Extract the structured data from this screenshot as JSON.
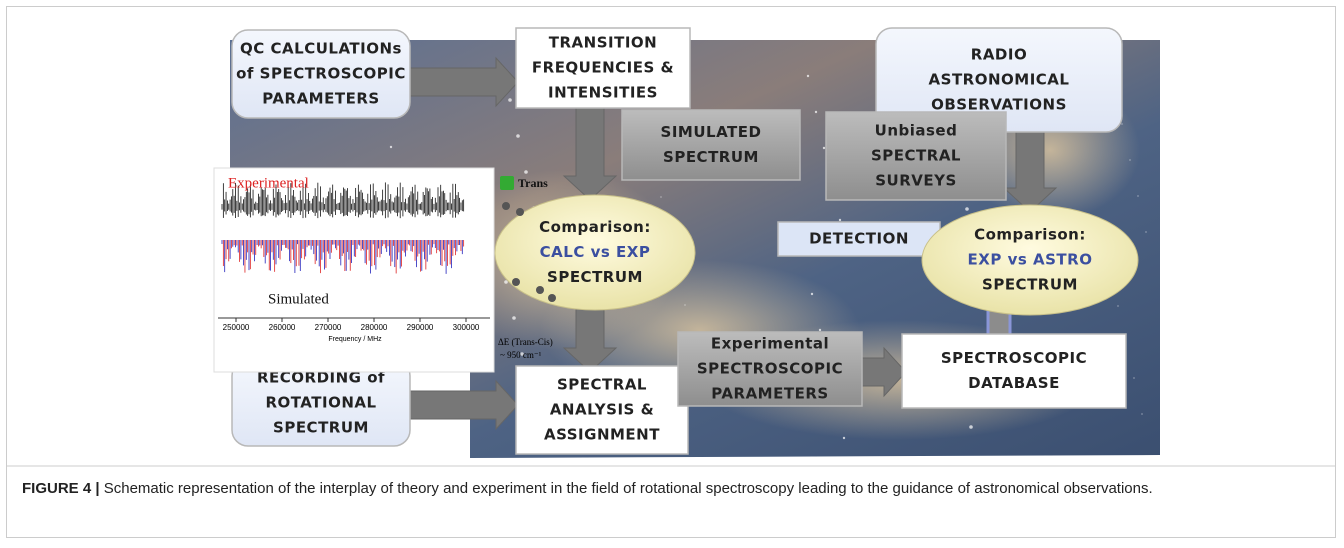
{
  "nodes": [
    {
      "lines": [
        "QC CALCULATIONs",
        "of SPECTROSCOPIC",
        "PARAMETERS"
      ]
    },
    {
      "lines": [
        "TRANSITION",
        "FREQUENCIES &",
        "INTENSITIES"
      ]
    },
    {
      "lines": [
        "SIMULATED",
        "SPECTRUM"
      ]
    },
    {
      "lines": [
        "RADIO",
        "ASTRONOMICAL",
        "OBSERVATIONS"
      ]
    },
    {
      "lines": [
        "Unbiased",
        "SPECTRAL",
        "SURVEYS"
      ]
    },
    {
      "lines": [
        "Comparison:",
        "CALC vs EXP",
        "SPECTRUM"
      ]
    },
    {
      "lines": [
        "DETECTION"
      ]
    },
    {
      "lines": [
        "Comparison:",
        "EXP vs ASTRO",
        "SPECTRUM"
      ]
    },
    {
      "lines": [
        "RECORDING of",
        "ROTATIONAL",
        "SPECTRUM"
      ]
    },
    {
      "lines": [
        "SPECTRAL",
        "ANALYSIS &",
        "ASSIGNMENT"
      ]
    },
    {
      "lines": [
        "Experimental",
        "SPECTROSCOPIC",
        "PARAMETERS"
      ]
    },
    {
      "lines": [
        "SPECTROSCOPIC",
        "DATABASE"
      ]
    }
  ],
  "inset": {
    "experimental_label": "Experimental",
    "simulated_label": "Simulated",
    "legend": "Trans",
    "x_tick_labels": [
      "250000",
      "260000",
      "270000",
      "280000",
      "290000",
      "300000"
    ],
    "x_label": "Frequency / MHz",
    "energy_label": "ΔE (Trans-Cis)",
    "energy_value": "~ 950 cm⁻¹"
  },
  "caption": {
    "label": "FIGURE 4 |",
    "text": "Schematic representation of the interplay of theory and experiment in the field of rotational spectroscopy leading to the guidance of astronomical observations."
  }
}
